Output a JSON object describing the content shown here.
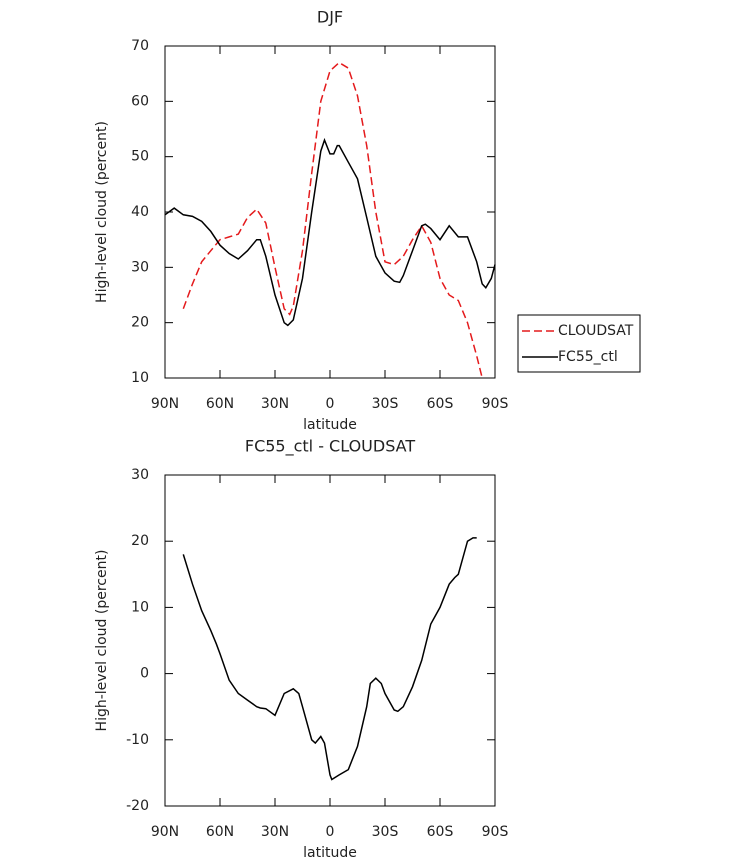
{
  "chart_data": [
    {
      "type": "line",
      "title": "DJF",
      "x_label": "latitude",
      "y_label": "High-level cloud (percent)",
      "xlim": [
        90,
        -90
      ],
      "xticks": [
        {
          "value": 90,
          "label": "90N"
        },
        {
          "value": 60,
          "label": "60N"
        },
        {
          "value": 30,
          "label": "30N"
        },
        0,
        {
          "value": -30,
          "label": "30S"
        },
        {
          "value": -60,
          "label": "60S"
        },
        {
          "value": -90,
          "label": "90S"
        }
      ],
      "ylim": [
        10,
        70
      ],
      "yticks": [
        10,
        20,
        30,
        40,
        50,
        60,
        70
      ],
      "legend": "right",
      "series": [
        {
          "name": "CLOUDSAT",
          "color": "#e41a1c",
          "dash": true,
          "x": [
            80,
            75,
            70,
            65,
            60,
            55,
            50,
            45,
            40,
            35,
            30,
            25,
            22,
            20,
            15,
            10,
            5,
            0,
            -5,
            -10,
            -15,
            -20,
            -25,
            -30,
            -35,
            -40,
            -45,
            -50,
            -55,
            -60,
            -65,
            -70,
            -75,
            -80,
            -83
          ],
          "values": [
            22.5,
            27,
            31,
            33,
            35,
            35.5,
            36,
            39,
            40.5,
            38,
            30,
            22.5,
            21.5,
            23,
            33,
            47,
            60,
            65.5,
            67,
            66,
            61,
            52,
            40,
            31,
            30.5,
            32,
            35,
            37.5,
            34.5,
            28,
            25,
            24,
            20,
            14,
            10
          ]
        },
        {
          "name": "FC55_ctl",
          "color": "#000000",
          "dash": false,
          "x": [
            90,
            85,
            80,
            75,
            70,
            65,
            60,
            55,
            50,
            45,
            40,
            38,
            35,
            30,
            25,
            23,
            20,
            15,
            10,
            5,
            3,
            0,
            -2,
            -4,
            -5,
            -10,
            -15,
            -20,
            -25,
            -30,
            -35,
            -38,
            -40,
            -45,
            -50,
            -52,
            -55,
            -60,
            -65,
            -70,
            -75,
            -80,
            -83,
            -85,
            -88,
            -90
          ],
          "values": [
            39.5,
            40.7,
            39.5,
            39.2,
            38.3,
            36.5,
            34,
            32.5,
            31.5,
            33,
            35,
            35,
            32,
            25,
            20,
            19.5,
            20.5,
            28,
            40,
            51,
            53,
            50.5,
            50.5,
            52,
            52,
            49,
            46,
            39,
            32,
            29,
            27.5,
            27.3,
            28.5,
            33,
            37.5,
            37.8,
            37,
            35,
            37.5,
            35.5,
            35.5,
            31,
            27,
            26.3,
            28,
            30.5
          ]
        }
      ]
    },
    {
      "type": "line",
      "title": "FC55_ctl - CLOUDSAT",
      "x_label": "latitude",
      "y_label": "High-level cloud (percent)",
      "xlim": [
        90,
        -90
      ],
      "xticks": [
        {
          "value": 90,
          "label": "90N"
        },
        {
          "value": 60,
          "label": "60N"
        },
        {
          "value": 30,
          "label": "30N"
        },
        0,
        {
          "value": -30,
          "label": "30S"
        },
        {
          "value": -60,
          "label": "60S"
        },
        {
          "value": -90,
          "label": "90S"
        }
      ],
      "ylim": [
        -20,
        30
      ],
      "yticks": [
        -20,
        -10,
        0,
        10,
        20,
        30
      ],
      "series": [
        {
          "color": "#000000",
          "dash": false,
          "x": [
            80,
            75,
            70,
            65,
            62,
            60,
            55,
            50,
            45,
            40,
            38,
            35,
            30,
            25,
            20,
            17,
            15,
            10,
            8,
            5,
            3,
            0,
            -1,
            -5,
            -10,
            -15,
            -20,
            -22,
            -25,
            -28,
            -30,
            -35,
            -37,
            -40,
            -45,
            -50,
            -55,
            -60,
            -65,
            -68,
            -70,
            -75,
            -78,
            -80
          ],
          "values": [
            18,
            13.5,
            9.5,
            6.5,
            4.5,
            3,
            -1,
            -3,
            -4,
            -5,
            -5.2,
            -5.3,
            -6.3,
            -3,
            -2.3,
            -3,
            -5,
            -10,
            -10.5,
            -9.5,
            -10.5,
            -15.3,
            -16,
            -15.3,
            -14.5,
            -11,
            -5,
            -1.5,
            -0.7,
            -1.5,
            -3,
            -5.5,
            -5.7,
            -5,
            -2,
            2,
            7.5,
            10,
            13.5,
            14.5,
            15,
            20,
            20.5,
            20.5
          ]
        }
      ]
    }
  ]
}
